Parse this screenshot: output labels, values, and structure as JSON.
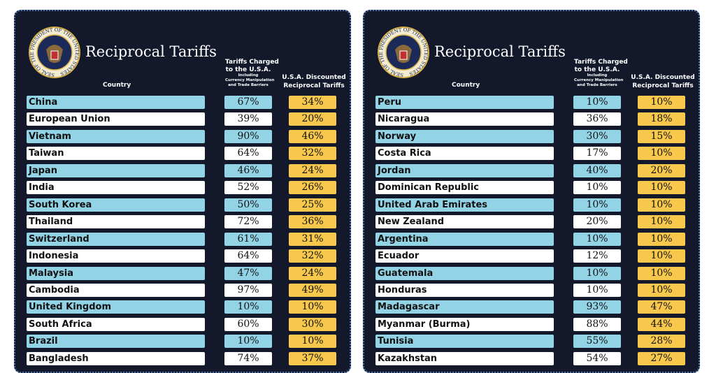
{
  "panels": [
    {
      "seal": "SEAL OF THE PRESIDENT OF THE UNITED STATES",
      "title": "Reciprocal Tariffs",
      "headers": {
        "country": "Country",
        "charged": [
          "Tariffs Charged",
          "to the U.S.A."
        ],
        "note": [
          "Including",
          "Currency Manipulation",
          "and Trade Barriers"
        ],
        "discounted": [
          "U.S.A. Discounted",
          "Reciprocal Tariffs"
        ]
      },
      "rows": [
        [
          "China",
          "67%",
          "34%"
        ],
        [
          "European Union",
          "39%",
          "20%"
        ],
        [
          "Vietnam",
          "90%",
          "46%"
        ],
        [
          "Taiwan",
          "64%",
          "32%"
        ],
        [
          "Japan",
          "46%",
          "24%"
        ],
        [
          "India",
          "52%",
          "26%"
        ],
        [
          "South Korea",
          "50%",
          "25%"
        ],
        [
          "Thailand",
          "72%",
          "36%"
        ],
        [
          "Switzerland",
          "61%",
          "31%"
        ],
        [
          "Indonesia",
          "64%",
          "32%"
        ],
        [
          "Malaysia",
          "47%",
          "24%"
        ],
        [
          "Cambodia",
          "97%",
          "49%"
        ],
        [
          "United Kingdom",
          "10%",
          "10%"
        ],
        [
          "South Africa",
          "60%",
          "30%"
        ],
        [
          "Brazil",
          "10%",
          "10%"
        ],
        [
          "Bangladesh",
          "74%",
          "37%"
        ]
      ]
    },
    {
      "seal": "SEAL OF THE PRESIDENT OF THE UNITED STATES",
      "title": "Reciprocal Tariffs",
      "headers": {
        "country": "Country",
        "charged": [
          "Tariffs Charged",
          "to the U.S.A."
        ],
        "note": [
          "Including",
          "Currency Manipulation",
          "and Trade Barriers"
        ],
        "discounted": [
          "U.S.A. Discounted",
          "Reciprocal Tariffs"
        ]
      },
      "rows": [
        [
          "Peru",
          "10%",
          "10%"
        ],
        [
          "Nicaragua",
          "36%",
          "18%"
        ],
        [
          "Norway",
          "30%",
          "15%"
        ],
        [
          "Costa Rica",
          "17%",
          "10%"
        ],
        [
          "Jordan",
          "40%",
          "20%"
        ],
        [
          "Dominican Republic",
          "10%",
          "10%"
        ],
        [
          "United Arab Emirates",
          "10%",
          "10%"
        ],
        [
          "New Zealand",
          "20%",
          "10%"
        ],
        [
          "Argentina",
          "10%",
          "10%"
        ],
        [
          "Ecuador",
          "12%",
          "10%"
        ],
        [
          "Guatemala",
          "10%",
          "10%"
        ],
        [
          "Honduras",
          "10%",
          "10%"
        ],
        [
          "Madagascar",
          "93%",
          "47%"
        ],
        [
          "Myanmar (Burma)",
          "88%",
          "44%"
        ],
        [
          "Tunisia",
          "55%",
          "28%"
        ],
        [
          "Kazakhstan",
          "54%",
          "27%"
        ]
      ]
    }
  ]
}
